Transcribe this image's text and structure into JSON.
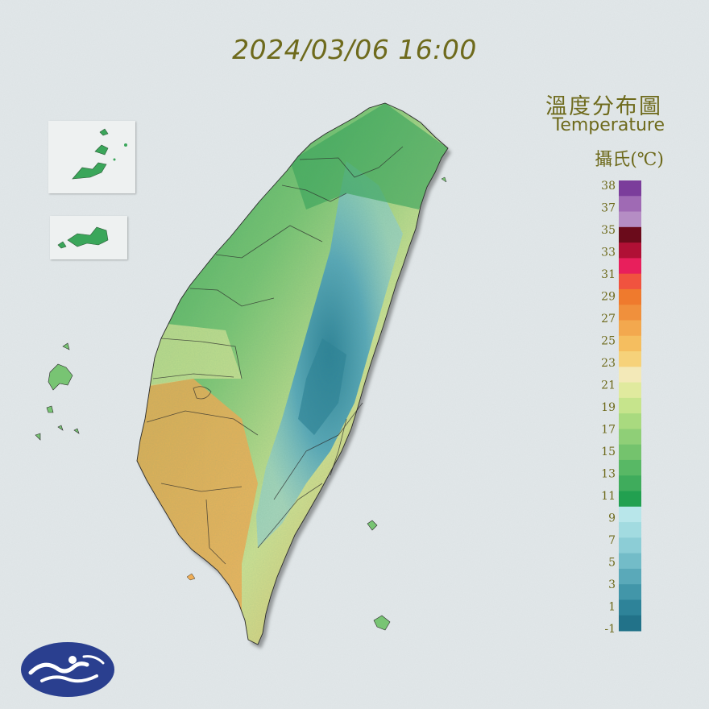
{
  "header": {
    "timestamp": "2024/03/06 16:00"
  },
  "legend": {
    "title_zh": "溫度分布圖",
    "title_en": "Temperature",
    "unit": "攝氏(℃)",
    "ticks": [
      "38",
      "37",
      "35",
      "33",
      "31",
      "29",
      "27",
      "25",
      "23",
      "21",
      "19",
      "17",
      "15",
      "13",
      "11",
      "9",
      "7",
      "5",
      "3",
      "1",
      "-1"
    ],
    "color_bands": [
      "#7b3d9b",
      "#9f6ab4",
      "#b58dc4",
      "#6b0b1b",
      "#b01035",
      "#e81f5c",
      "#f0533f",
      "#ef7a2d",
      "#f0903c",
      "#f3a84e",
      "#f5be5f",
      "#f6d27a",
      "#f3e9b8",
      "#e0ea9e",
      "#c6e48c",
      "#a9da7f",
      "#8fcf77",
      "#74c36d",
      "#58b865",
      "#3fac5c",
      "#22a050",
      "#b8e6ea",
      "#a2dbe0",
      "#8ccdd6",
      "#73bcc8",
      "#5aa9b9",
      "#4296a9",
      "#2e8399",
      "#227289"
    ]
  },
  "map": {
    "region": "Taiwan",
    "hot_color": "#efad55",
    "warm_color": "#cde193",
    "mild_color": "#78c473",
    "cool_color": "#3aa65a",
    "cold_color": "#8ccdd6",
    "coldest_color": "#2e8399"
  },
  "logo": {
    "icon": "cwa-logo-icon",
    "color": "#2a3f8f"
  }
}
